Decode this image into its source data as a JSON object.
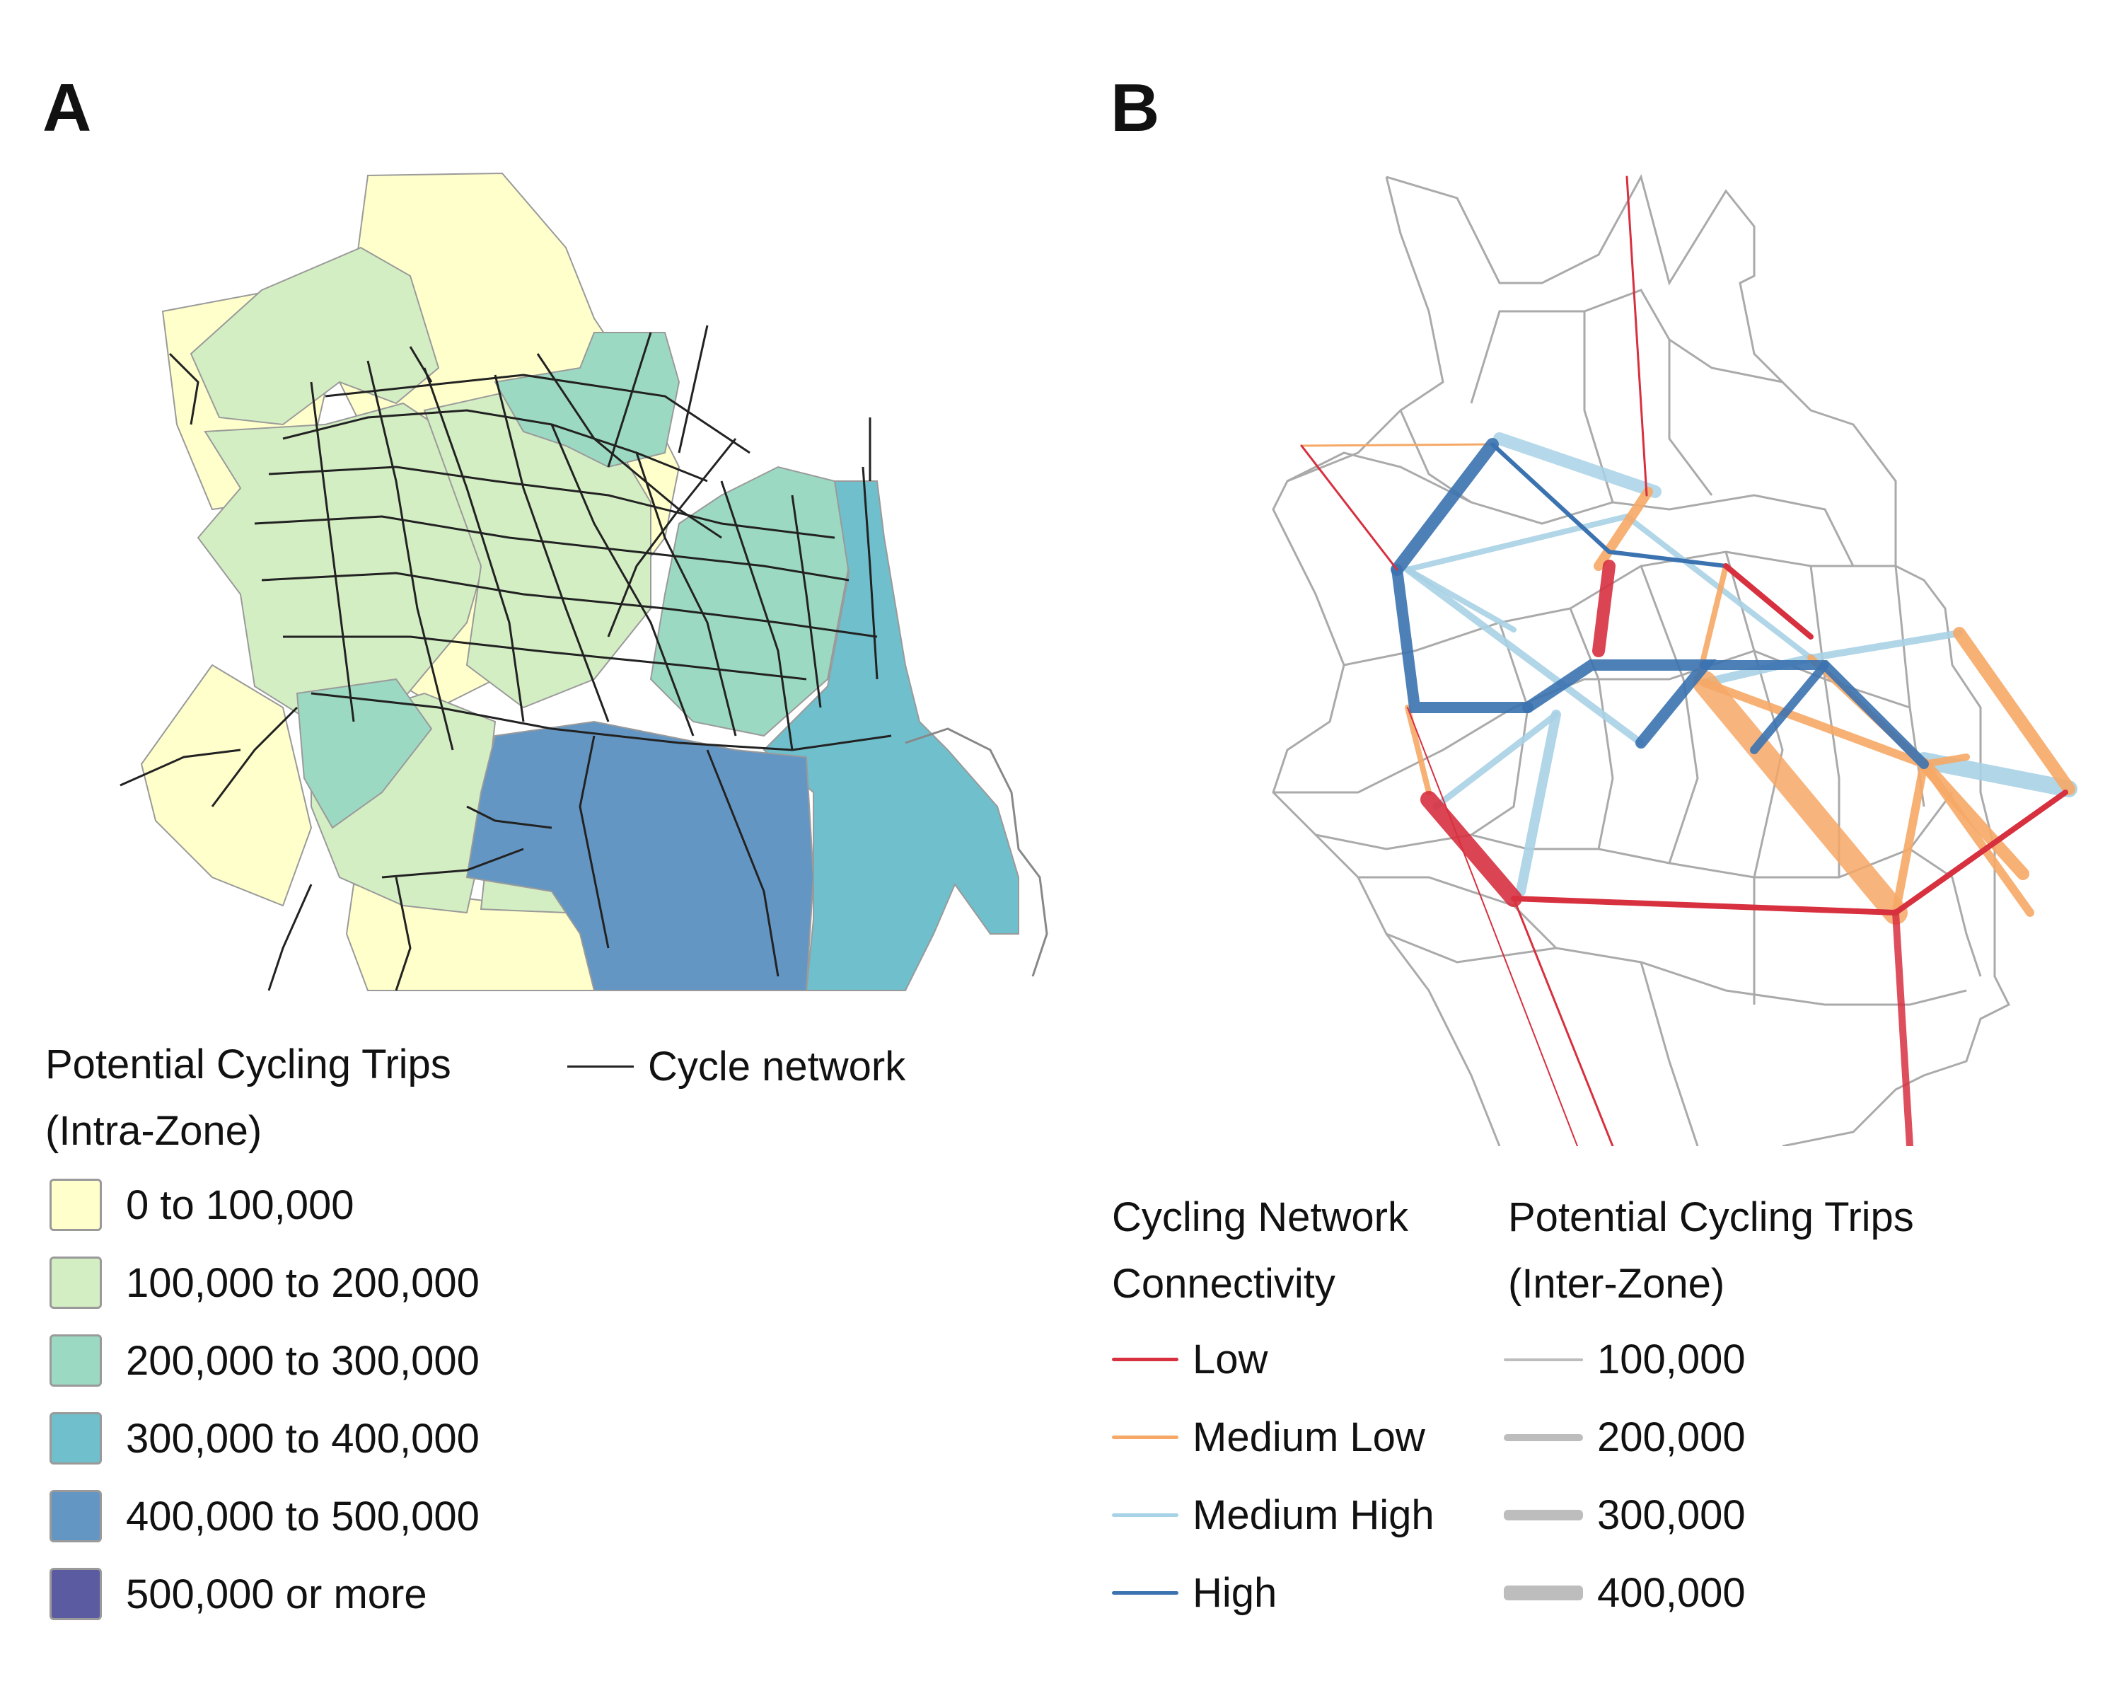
{
  "panel_a": {
    "label": "A",
    "legend_title": "Potential Cycling Trips\n(Intra-Zone)",
    "network_label": "Cycle network",
    "classes": [
      {
        "label": "0 to 100,000",
        "color": "#ffffcc"
      },
      {
        "label": "100,000 to 200,000",
        "color": "#d4eec4"
      },
      {
        "label": "200,000 to 300,000",
        "color": "#9cd9c3"
      },
      {
        "label": "300,000 to 400,000",
        "color": "#6fbfcc"
      },
      {
        "label": "400,000 to 500,000",
        "color": "#6496c3"
      },
      {
        "label": "500,000 or more",
        "color": "#5a5ba1"
      }
    ]
  },
  "panel_b": {
    "label": "B",
    "connectivity_title": "Cycling Network\nConnectivity",
    "connectivity": [
      {
        "label": "Low",
        "color": "#d7303f"
      },
      {
        "label": "Medium Low",
        "color": "#f6a866"
      },
      {
        "label": "Medium High",
        "color": "#a8d2e6"
      },
      {
        "label": "High",
        "color": "#3b72b0"
      }
    ],
    "trips_title": "Potential Cycling Trips\n(Inter-Zone)",
    "trips": [
      {
        "label": "100,000",
        "width": 1
      },
      {
        "label": "200,000",
        "width": 2
      },
      {
        "label": "300,000",
        "width": 3
      },
      {
        "label": "400,000",
        "width": 4
      }
    ],
    "trips_color": "#bdbdbd"
  }
}
